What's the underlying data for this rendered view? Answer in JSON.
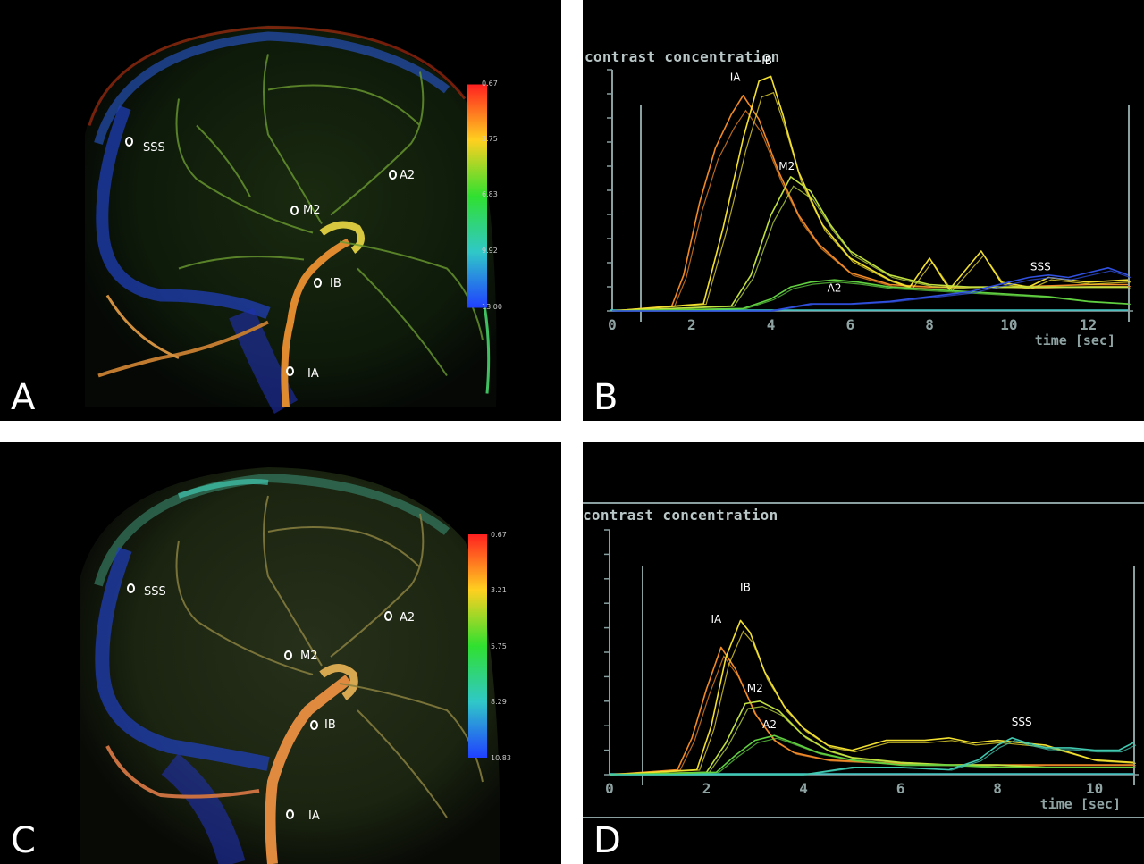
{
  "panels": {
    "A": {
      "letter": "A",
      "colorbar_ticks": [
        "0.67",
        "3.75",
        "6.83",
        "9.92",
        "13.00"
      ],
      "roi_labels": {
        "sss": "SSS",
        "a2": "A2",
        "m2": "M2",
        "ib": "IB",
        "ia": "IA"
      }
    },
    "B": {
      "letter": "B"
    },
    "C": {
      "letter": "C",
      "colorbar_ticks": [
        "0.67",
        "3.21",
        "5.75",
        "8.29",
        "10.83"
      ],
      "roi_labels": {
        "sss": "SSS",
        "a2": "A2",
        "m2": "M2",
        "ib": "IB",
        "ia": "IA"
      }
    },
    "D": {
      "letter": "D"
    }
  },
  "colors": {
    "IA": "#f08a28",
    "IB": "#f2e030",
    "M2": "#c0e040",
    "A2": "#60d040",
    "SSS": "#3050e0",
    "SSS_D": "#40c8b0",
    "axis": "#8aa0a0"
  },
  "chart_data": [
    {
      "type": "line",
      "panel": "B",
      "ylabel": "contrast concentration",
      "xlabel": "time [sec]",
      "x_ticks": [
        0,
        2,
        4,
        6,
        8,
        10,
        12
      ],
      "xlim": [
        0,
        13
      ],
      "ylim": [
        0,
        10
      ],
      "grid": false,
      "series": [
        {
          "name": "IA",
          "x": [
            0,
            1.5,
            1.8,
            2.2,
            2.6,
            3.0,
            3.3,
            3.7,
            4.2,
            4.7,
            5.2,
            6.0,
            7.0,
            8.0,
            9.0,
            10.0,
            11.0,
            12.0,
            13.0
          ],
          "y": [
            0,
            0.2,
            1.5,
            4.5,
            6.8,
            8.2,
            9.0,
            8.0,
            5.8,
            4.0,
            2.8,
            1.6,
            1.1,
            1.0,
            1.0,
            1.0,
            1.05,
            1.1,
            1.1
          ]
        },
        {
          "name": "IB",
          "x": [
            0,
            2.3,
            2.8,
            3.3,
            3.7,
            4.0,
            4.3,
            4.7,
            5.3,
            6.0,
            7.0,
            7.5,
            8.0,
            8.5,
            9.0,
            9.3,
            9.8,
            10.5,
            11.0,
            12.0,
            13.0
          ],
          "y": [
            0,
            0.3,
            3.5,
            7.2,
            9.6,
            9.8,
            8.2,
            5.8,
            3.6,
            2.2,
            1.3,
            1.0,
            2.2,
            0.9,
            1.9,
            2.5,
            1.2,
            1.0,
            1.4,
            1.2,
            1.3
          ]
        },
        {
          "name": "M2",
          "x": [
            0,
            3.0,
            3.5,
            4.0,
            4.5,
            5.0,
            5.5,
            6.0,
            7.0,
            8.0,
            9.0,
            10.0,
            11.0,
            12.0,
            13.0
          ],
          "y": [
            0,
            0.2,
            1.5,
            4.0,
            5.6,
            5.0,
            3.6,
            2.5,
            1.5,
            1.1,
            1.0,
            1.0,
            1.0,
            1.0,
            1.0
          ]
        },
        {
          "name": "A2",
          "x": [
            0,
            3.3,
            4.0,
            4.5,
            5.0,
            5.6,
            6.2,
            7.0,
            8.0,
            9.0,
            10.0,
            11.0,
            12.0,
            13.0
          ],
          "y": [
            0,
            0.1,
            0.5,
            1.0,
            1.2,
            1.3,
            1.2,
            1.0,
            0.9,
            0.8,
            0.7,
            0.6,
            0.4,
            0.3
          ]
        },
        {
          "name": "SSS",
          "x": [
            0,
            4.0,
            5.0,
            6.0,
            7.0,
            8.0,
            9.0,
            9.5,
            10.0,
            10.5,
            11.0,
            11.5,
            12.0,
            12.5,
            13.0
          ],
          "y": [
            0,
            0.0,
            0.3,
            0.3,
            0.4,
            0.6,
            0.8,
            1.0,
            1.2,
            1.4,
            1.5,
            1.4,
            1.6,
            1.8,
            1.5
          ]
        }
      ],
      "annotations": [
        {
          "text": "IA",
          "x": 3.1,
          "y": 9.6
        },
        {
          "text": "IB",
          "x": 3.9,
          "y": 10.3
        },
        {
          "text": "M2",
          "x": 4.4,
          "y": 5.9
        },
        {
          "text": "A2",
          "x": 5.6,
          "y": 0.8
        },
        {
          "text": "SSS",
          "x": 10.8,
          "y": 1.7
        }
      ]
    },
    {
      "type": "line",
      "panel": "D",
      "ylabel": "contrast concentration",
      "xlabel": "time [sec]",
      "x_ticks": [
        0,
        2,
        4,
        6,
        8,
        10
      ],
      "xlim": [
        0,
        10.8
      ],
      "ylim": [
        0,
        10
      ],
      "grid": false,
      "series": [
        {
          "name": "IA",
          "x": [
            0,
            1.4,
            1.7,
            2.0,
            2.3,
            2.6,
            3.0,
            3.4,
            3.8,
            4.5,
            5.5,
            6.5,
            7.5,
            8.5,
            9.5,
            10.8
          ],
          "y": [
            0,
            0.2,
            1.5,
            3.5,
            5.2,
            4.3,
            2.5,
            1.4,
            0.9,
            0.6,
            0.5,
            0.4,
            0.4,
            0.4,
            0.4,
            0.4
          ]
        },
        {
          "name": "IB",
          "x": [
            0,
            1.8,
            2.1,
            2.4,
            2.7,
            2.9,
            3.2,
            3.6,
            4.0,
            4.5,
            5.0,
            5.7,
            6.5,
            7.0,
            7.5,
            8.0,
            8.5,
            9.0,
            10.0,
            10.8
          ],
          "y": [
            0,
            0.2,
            2.0,
            4.8,
            6.3,
            5.8,
            4.2,
            2.8,
            1.9,
            1.2,
            1.0,
            1.4,
            1.4,
            1.5,
            1.3,
            1.4,
            1.3,
            1.2,
            0.6,
            0.5
          ]
        },
        {
          "name": "M2",
          "x": [
            0,
            2.0,
            2.4,
            2.8,
            3.1,
            3.5,
            4.0,
            4.5,
            5.0,
            6.0,
            7.0,
            8.0,
            9.0,
            10.0,
            10.8
          ],
          "y": [
            0,
            0.1,
            1.3,
            2.9,
            3.0,
            2.6,
            1.6,
            1.0,
            0.7,
            0.5,
            0.4,
            0.4,
            0.3,
            0.3,
            0.3
          ]
        },
        {
          "name": "A2",
          "x": [
            0,
            2.2,
            2.6,
            3.0,
            3.4,
            3.8,
            4.3,
            5.0,
            6.0,
            7.0,
            8.0,
            9.0,
            10.0,
            10.8
          ],
          "y": [
            0,
            0.1,
            0.8,
            1.4,
            1.6,
            1.3,
            0.9,
            0.6,
            0.4,
            0.4,
            0.3,
            0.3,
            0.3,
            0.3
          ]
        },
        {
          "name": "SSS",
          "x": [
            0,
            4.0,
            5.0,
            6.0,
            7.0,
            7.6,
            8.0,
            8.3,
            8.6,
            9.0,
            9.5,
            10.0,
            10.5,
            10.8
          ],
          "y": [
            0,
            0.0,
            0.3,
            0.3,
            0.2,
            0.6,
            1.2,
            1.5,
            1.3,
            1.1,
            1.1,
            1.0,
            1.0,
            1.3
          ]
        }
      ],
      "annotations": [
        {
          "text": "IA",
          "x": 2.2,
          "y": 6.2
        },
        {
          "text": "IB",
          "x": 2.8,
          "y": 7.5
        },
        {
          "text": "M2",
          "x": 3.0,
          "y": 3.4
        },
        {
          "text": "A2",
          "x": 3.3,
          "y": 1.9
        },
        {
          "text": "SSS",
          "x": 8.5,
          "y": 2.0
        }
      ]
    }
  ]
}
